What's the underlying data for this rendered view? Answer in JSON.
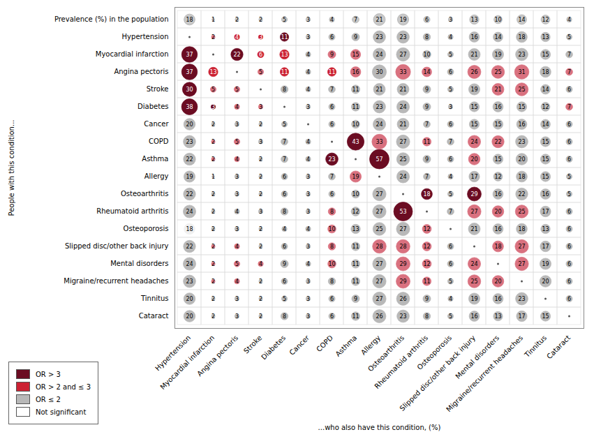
{
  "chart_data": {
    "type": "bubble_matrix",
    "title": "Prevalence (%) in the population",
    "xlabel": "...who also have this condition, (%)",
    "ylabel": "People with this condition...",
    "categories": [
      "Hypertension",
      "Myocardial infarction",
      "Angina pectoris",
      "Stroke",
      "Diabetes",
      "Cancer",
      "COPD",
      "Asthma",
      "Allergy",
      "Osteoarthritis",
      "Rheumatoid arthritis",
      "Osteoporosis",
      "Slipped disc/other back injury",
      "Mental disorders",
      "Migraine/recurrent headaches",
      "Tinnitus",
      "Cataract"
    ],
    "top_values": [
      18,
      1,
      2,
      2,
      5,
      3,
      4,
      7,
      21,
      19,
      6,
      3,
      13,
      10,
      14,
      12,
      4
    ],
    "top_color": "#c8c8c8",
    "top_edge": "#aaaaaa",
    "matrix": [
      [
        null,
        2,
        4,
        3,
        11,
        3,
        6,
        9,
        23,
        23,
        8,
        4,
        16,
        14,
        18,
        13,
        5
      ],
      [
        37,
        null,
        22,
        6,
        13,
        4,
        9,
        15,
        24,
        27,
        10,
        5,
        21,
        19,
        23,
        15,
        7
      ],
      [
        37,
        13,
        null,
        5,
        11,
        4,
        11,
        16,
        30,
        33,
        14,
        6,
        26,
        25,
        31,
        18,
        7
      ],
      [
        30,
        5,
        5,
        null,
        8,
        4,
        7,
        11,
        21,
        21,
        9,
        5,
        19,
        21,
        25,
        14,
        6
      ],
      [
        38,
        3,
        4,
        3,
        null,
        3,
        6,
        11,
        23,
        24,
        9,
        3,
        15,
        16,
        15,
        12,
        7
      ],
      [
        20,
        2,
        3,
        2,
        5,
        null,
        6,
        10,
        24,
        21,
        7,
        6,
        15,
        15,
        16,
        14,
        6
      ],
      [
        23,
        2,
        5,
        3,
        7,
        4,
        null,
        43,
        33,
        27,
        11,
        7,
        24,
        22,
        23,
        15,
        6
      ],
      [
        22,
        2,
        4,
        2,
        7,
        4,
        23,
        null,
        57,
        25,
        9,
        6,
        20,
        15,
        20,
        15,
        6
      ],
      [
        19,
        1,
        3,
        2,
        6,
        3,
        7,
        19,
        null,
        24,
        7,
        4,
        17,
        12,
        18,
        15,
        5
      ],
      [
        22,
        2,
        3,
        2,
        6,
        3,
        6,
        10,
        27,
        null,
        18,
        5,
        29,
        16,
        22,
        16,
        5
      ],
      [
        24,
        2,
        4,
        3,
        8,
        3,
        8,
        12,
        27,
        53,
        null,
        7,
        27,
        20,
        25,
        17,
        6
      ],
      [
        18,
        2,
        3,
        2,
        4,
        4,
        10,
        13,
        25,
        27,
        12,
        null,
        21,
        16,
        18,
        13,
        6
      ],
      [
        22,
        2,
        4,
        2,
        6,
        3,
        8,
        11,
        28,
        28,
        12,
        6,
        null,
        18,
        27,
        17,
        6
      ],
      [
        24,
        2,
        5,
        4,
        9,
        4,
        10,
        11,
        27,
        29,
        12,
        6,
        24,
        null,
        27,
        19,
        6
      ],
      [
        23,
        2,
        4,
        2,
        6,
        3,
        8,
        11,
        27,
        29,
        11,
        5,
        25,
        20,
        null,
        20,
        6
      ],
      [
        20,
        2,
        3,
        2,
        5,
        3,
        6,
        9,
        27,
        26,
        9,
        4,
        19,
        16,
        23,
        null,
        6
      ],
      [
        20,
        2,
        3,
        2,
        8,
        3,
        6,
        11,
        26,
        23,
        8,
        5,
        16,
        13,
        17,
        15,
        null
      ]
    ],
    "colors": [
      [
        null,
        "#d9717f",
        "#cc2233",
        "#cc2233",
        "#6b0c22",
        "#b8b8b8",
        "#b8b8b8",
        "#b8b8b8",
        "#b8b8b8",
        "#b8b8b8",
        "#b8b8b8",
        "#b8b8b8",
        "#b8b8b8",
        "#b8b8b8",
        "#b8b8b8",
        "#b8b8b8",
        "#b8b8b8"
      ],
      [
        "#6b0c22",
        null,
        "#6b0c22",
        "#cc2233",
        "#cc2233",
        "#b8b8b8",
        "#d9717f",
        "#d9717f",
        "#b8b8b8",
        "#b8b8b8",
        "#b8b8b8",
        "#b8b8b8",
        "#b8b8b8",
        "#b8b8b8",
        "#b8b8b8",
        "#b8b8b8",
        "#b8b8b8"
      ],
      [
        "#6b0c22",
        "#cc2233",
        null,
        "#d9717f",
        "#cc2233",
        "#b8b8b8",
        "#cc2233",
        "#d9717f",
        "#b8b8b8",
        "#d9717f",
        "#d9717f",
        "#b8b8b8",
        "#d9717f",
        "#d9717f",
        "#d9717f",
        "#b8b8b8",
        "#d9717f"
      ],
      [
        "#6b0c22",
        "#d9717f",
        "#d9717f",
        null,
        "#b8b8b8",
        "#b8b8b8",
        "#b8b8b8",
        "#b8b8b8",
        "#b8b8b8",
        "#b8b8b8",
        "#b8b8b8",
        "#b8b8b8",
        "#b8b8b8",
        "#d9717f",
        "#d9717f",
        "#b8b8b8",
        "#b8b8b8"
      ],
      [
        "#6b0c22",
        "#6b0c22",
        "#d9717f",
        "#d9717f",
        null,
        "#b8b8b8",
        "#b8b8b8",
        "#b8b8b8",
        "#b8b8b8",
        "#b8b8b8",
        "#b8b8b8",
        "#b8b8b8",
        "#b8b8b8",
        "#b8b8b8",
        "#b8b8b8",
        "#b8b8b8",
        "#d9717f"
      ],
      [
        "#b8b8b8",
        "#b8b8b8",
        "#b8b8b8",
        "#b8b8b8",
        "#b8b8b8",
        null,
        "#b8b8b8",
        "#b8b8b8",
        "#b8b8b8",
        "#b8b8b8",
        "#b8b8b8",
        "#b8b8b8",
        "#b8b8b8",
        "#b8b8b8",
        "#b8b8b8",
        "#b8b8b8",
        "#b8b8b8"
      ],
      [
        "#b8b8b8",
        "#d9717f",
        "#d9717f",
        "#b8b8b8",
        "#b8b8b8",
        "#b8b8b8",
        null,
        "#6b0c22",
        "#d9717f",
        "#b8b8b8",
        "#d9717f",
        "#b8b8b8",
        "#d9717f",
        "#d9717f",
        "#b8b8b8",
        "#b8b8b8",
        "#b8b8b8"
      ],
      [
        "#b8b8b8",
        "#d9717f",
        "#d9717f",
        "#b8b8b8",
        "#b8b8b8",
        "#b8b8b8",
        "#6b0c22",
        null,
        "#6b0c22",
        "#b8b8b8",
        "#b8b8b8",
        "#b8b8b8",
        "#d9717f",
        "#b8b8b8",
        "#b8b8b8",
        "#b8b8b8",
        "#b8b8b8"
      ],
      [
        "#b8b8b8",
        "#b8b8b8",
        "#b8b8b8",
        "#b8b8b8",
        "#b8b8b8",
        "#b8b8b8",
        "#b8b8b8",
        "#d9717f",
        null,
        "#b8b8b8",
        "#b8b8b8",
        "#b8b8b8",
        "#b8b8b8",
        "#b8b8b8",
        "#b8b8b8",
        "#b8b8b8",
        "#b8b8b8"
      ],
      [
        "#b8b8b8",
        "#b8b8b8",
        "#b8b8b8",
        "#b8b8b8",
        "#b8b8b8",
        "#b8b8b8",
        "#b8b8b8",
        "#b8b8b8",
        "#b8b8b8",
        null,
        "#6b0c22",
        "#b8b8b8",
        "#6b0c22",
        "#b8b8b8",
        "#b8b8b8",
        "#b8b8b8",
        "#b8b8b8"
      ],
      [
        "#b8b8b8",
        "#b8b8b8",
        "#b8b8b8",
        "#b8b8b8",
        "#b8b8b8",
        "#b8b8b8",
        "#d9717f",
        "#b8b8b8",
        "#b8b8b8",
        "#6b0c22",
        null,
        "#b8b8b8",
        "#d9717f",
        "#d9717f",
        "#d9717f",
        "#b8b8b8",
        "#b8b8b8"
      ],
      [
        "#f0f0f0",
        "#b8b8b8",
        "#b8b8b8",
        "#b8b8b8",
        "#b8b8b8",
        "#b8b8b8",
        "#d9717f",
        "#b8b8b8",
        "#b8b8b8",
        "#b8b8b8",
        "#d9717f",
        null,
        "#b8b8b8",
        "#b8b8b8",
        "#b8b8b8",
        "#b8b8b8",
        "#b8b8b8"
      ],
      [
        "#b8b8b8",
        "#d9717f",
        "#d9717f",
        "#b8b8b8",
        "#b8b8b8",
        "#b8b8b8",
        "#d9717f",
        "#b8b8b8",
        "#d9717f",
        "#d9717f",
        "#d9717f",
        "#b8b8b8",
        null,
        "#d9717f",
        "#d9717f",
        "#b8b8b8",
        "#b8b8b8"
      ],
      [
        "#b8b8b8",
        "#d9717f",
        "#d9717f",
        "#d9717f",
        "#b8b8b8",
        "#b8b8b8",
        "#d9717f",
        "#b8b8b8",
        "#b8b8b8",
        "#d9717f",
        "#d9717f",
        "#b8b8b8",
        "#d9717f",
        null,
        "#d9717f",
        "#b8b8b8",
        "#b8b8b8"
      ],
      [
        "#b8b8b8",
        "#d9717f",
        "#d9717f",
        "#b8b8b8",
        "#b8b8b8",
        "#b8b8b8",
        "#b8b8b8",
        "#b8b8b8",
        "#b8b8b8",
        "#d9717f",
        "#d9717f",
        "#b8b8b8",
        "#d9717f",
        "#d9717f",
        null,
        "#b8b8b8",
        "#b8b8b8"
      ],
      [
        "#b8b8b8",
        "#b8b8b8",
        "#b8b8b8",
        "#b8b8b8",
        "#b8b8b8",
        "#b8b8b8",
        "#b8b8b8",
        "#b8b8b8",
        "#b8b8b8",
        "#b8b8b8",
        "#b8b8b8",
        "#b8b8b8",
        "#b8b8b8",
        "#b8b8b8",
        "#b8b8b8",
        null,
        "#b8b8b8"
      ],
      [
        "#b8b8b8",
        "#b8b8b8",
        "#b8b8b8",
        "#b8b8b8",
        "#b8b8b8",
        "#b8b8b8",
        "#b8b8b8",
        "#b8b8b8",
        "#b8b8b8",
        "#b8b8b8",
        "#b8b8b8",
        "#b8b8b8",
        "#b8b8b8",
        "#b8b8b8",
        "#b8b8b8",
        "#b8b8b8",
        null
      ]
    ],
    "data_labels": true,
    "grid": true,
    "legend": "bottom-left",
    "legend_entries": [
      {
        "name": "OR > 3",
        "color": "#6b0c22"
      },
      {
        "name": "OR > 2 and ≤ 3",
        "color": "#cc2233"
      },
      {
        "name": "OR ≤ 2",
        "color": "#b8b8b8"
      },
      {
        "name": "Not significant",
        "color": "#ffffff"
      }
    ]
  }
}
